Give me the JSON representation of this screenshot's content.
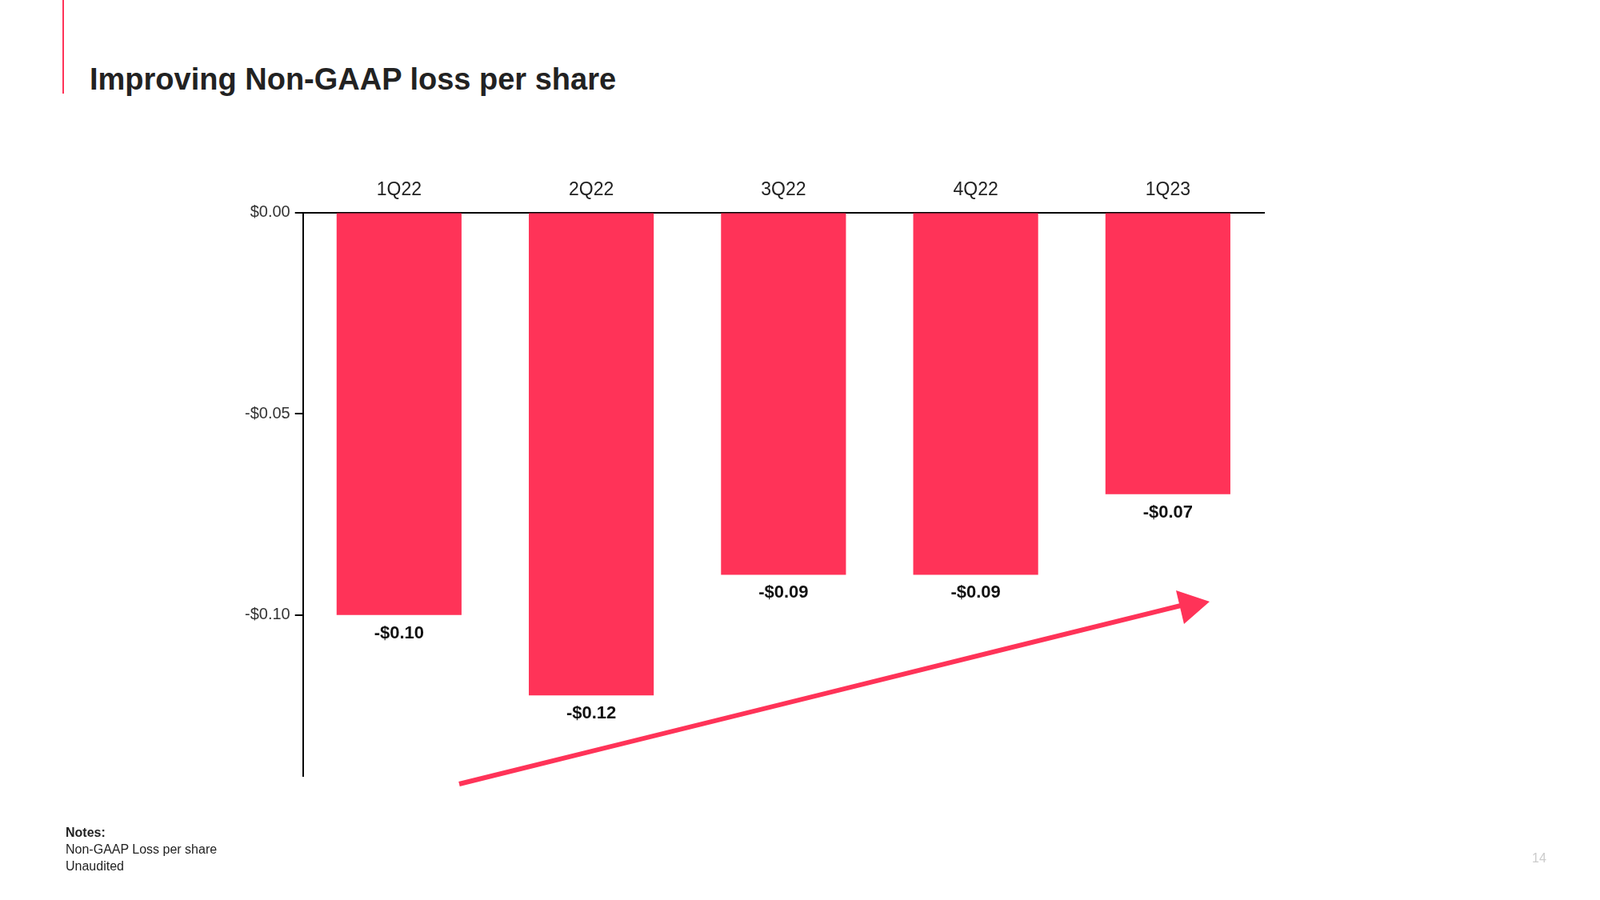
{
  "chart_data": {
    "type": "bar",
    "title": "Improving Non-GAAP loss per share",
    "categories": [
      "1Q22",
      "2Q22",
      "3Q22",
      "4Q22",
      "1Q23"
    ],
    "values": [
      -0.1,
      -0.12,
      -0.09,
      -0.09,
      -0.07
    ],
    "value_labels": [
      "-$0.10",
      "-$0.12",
      "-$0.09",
      "-$0.09",
      "-$0.07"
    ],
    "color": "#ff3358",
    "ylim": [
      -0.14,
      0
    ],
    "yticks": [
      {
        "value": 0,
        "label": "$0.00"
      },
      {
        "value": -0.05,
        "label": "-$0.05"
      },
      {
        "value": -0.1,
        "label": "-$0.10"
      }
    ],
    "grid": false,
    "data_labels": true
  },
  "notes": {
    "heading": "Notes:",
    "lines": [
      "Non-GAAP Loss per share",
      "Unaudited"
    ]
  },
  "page_number": "14"
}
